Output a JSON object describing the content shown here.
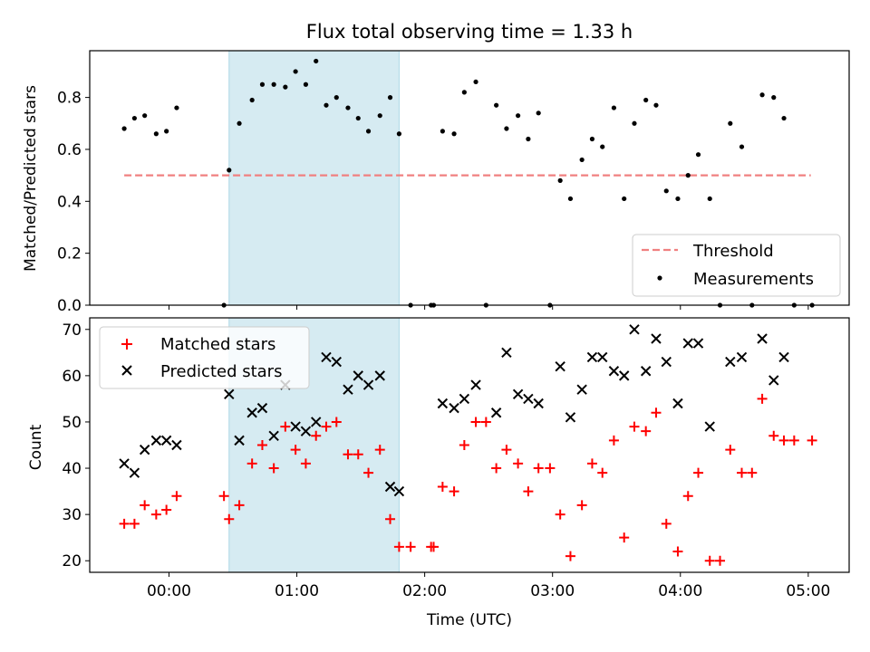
{
  "chart_data": [
    {
      "type": "scatter",
      "title": "Flux total observing time = 1.33 h",
      "ylabel": "Matched/Predicted stars",
      "xlabel": "",
      "x_unit": "hours (UTC)",
      "xlim": [
        -0.62,
        5.32
      ],
      "ylim": [
        0,
        0.98
      ],
      "yticks": [
        0.0,
        0.2,
        0.4,
        0.6,
        0.8
      ],
      "ytick_labels": [
        "0.0",
        "0.2",
        "0.4",
        "0.6",
        "0.8"
      ],
      "highlight_span": [
        0.47,
        1.8
      ],
      "legend": {
        "position": "lower right",
        "entries": [
          "Threshold",
          "Measurements"
        ]
      },
      "threshold": {
        "name": "Threshold",
        "y": 0.5,
        "x": [
          -0.35,
          5.02
        ],
        "color": "#f08080",
        "style": "dashed"
      },
      "series": [
        {
          "name": "Measurements",
          "color": "#000000",
          "marker": "dot",
          "x": [
            -0.35,
            -0.27,
            -0.19,
            -0.1,
            -0.02,
            0.06,
            0.47,
            0.55,
            0.65,
            0.73,
            0.82,
            0.91,
            0.99,
            1.07,
            1.15,
            1.23,
            1.31,
            1.4,
            1.48,
            1.56,
            1.65,
            1.73,
            1.8,
            1.89,
            2.05,
            2.07,
            2.14,
            2.23,
            2.31,
            2.4,
            2.48,
            2.56,
            2.64,
            2.73,
            2.81,
            2.89,
            2.98,
            3.06,
            3.14,
            3.23,
            3.31,
            3.39,
            3.48,
            3.56,
            3.64,
            3.73,
            3.81,
            3.89,
            3.98,
            4.06,
            4.14,
            4.23,
            4.31,
            4.39,
            4.48,
            4.56,
            4.64,
            4.73,
            4.81,
            4.89,
            5.03
          ],
          "y": [
            0.68,
            0.72,
            0.73,
            0.66,
            0.67,
            0.76,
            0.52,
            0.7,
            0.79,
            0.85,
            0.85,
            0.84,
            0.9,
            0.85,
            0.94,
            0.77,
            0.8,
            0.76,
            0.72,
            0.67,
            0.73,
            0.8,
            0.66,
            0.0,
            0.0,
            0.0,
            0.67,
            0.66,
            0.82,
            0.86,
            0.0,
            0.77,
            0.68,
            0.73,
            0.64,
            0.74,
            0.0,
            0.48,
            0.41,
            0.56,
            0.64,
            0.61,
            0.76,
            0.41,
            0.7,
            0.79,
            0.77,
            0.44,
            0.41,
            0.5,
            0.58,
            0.41,
            0.0,
            0.7,
            0.61,
            0.0,
            0.81,
            0.8,
            0.72,
            0.0,
            0.0
          ]
        },
        {
          "name": "Measurements",
          "color": "#000000",
          "marker": "dot",
          "x": [
            0.43
          ],
          "y": [
            0.0
          ]
        }
      ]
    },
    {
      "type": "scatter",
      "title": "",
      "xlabel": "Time (UTC)",
      "ylabel": "Count",
      "x_unit": "hours (UTC)",
      "xlim": [
        -0.62,
        5.32
      ],
      "ylim": [
        17.5,
        72.5
      ],
      "yticks": [
        20,
        30,
        40,
        50,
        60,
        70
      ],
      "ytick_labels": [
        "20",
        "30",
        "40",
        "50",
        "60",
        "70"
      ],
      "xticks": [
        0,
        1,
        2,
        3,
        4,
        5
      ],
      "xtick_labels": [
        "00:00",
        "01:00",
        "02:00",
        "03:00",
        "04:00",
        "05:00"
      ],
      "highlight_span": [
        0.47,
        1.8
      ],
      "legend": {
        "position": "upper left",
        "entries": [
          "Matched stars",
          "Predicted stars"
        ]
      },
      "series": [
        {
          "name": "Matched stars",
          "color": "#ff0000",
          "marker": "plus",
          "x": [
            -0.35,
            -0.27,
            -0.19,
            -0.1,
            -0.02,
            0.06,
            0.43,
            0.47,
            0.55,
            0.65,
            0.73,
            0.82,
            0.91,
            0.99,
            1.07,
            1.15,
            1.23,
            1.31,
            1.4,
            1.48,
            1.56,
            1.65,
            1.73,
            1.8,
            1.89,
            2.05,
            2.07,
            2.14,
            2.23,
            2.31,
            2.4,
            2.48,
            2.56,
            2.64,
            2.73,
            2.81,
            2.89,
            2.98,
            3.06,
            3.14,
            3.23,
            3.31,
            3.39,
            3.48,
            3.56,
            3.64,
            3.73,
            3.81,
            3.89,
            3.98,
            4.06,
            4.14,
            4.23,
            4.31,
            4.39,
            4.48,
            4.56,
            4.64,
            4.73,
            4.81,
            4.89,
            5.03
          ],
          "y": [
            28,
            28,
            32,
            30,
            31,
            34,
            34,
            29,
            32,
            41,
            45,
            40,
            49,
            44,
            41,
            47,
            49,
            50,
            43,
            43,
            39,
            44,
            29,
            23,
            23,
            23,
            23,
            36,
            35,
            45,
            50,
            50,
            40,
            44,
            41,
            35,
            40,
            40,
            30,
            21,
            32,
            41,
            39,
            46,
            25,
            49,
            48,
            52,
            28,
            22,
            34,
            39,
            20,
            20,
            44,
            39,
            39,
            55,
            47,
            46,
            46,
            46
          ]
        },
        {
          "name": "Predicted stars",
          "color": "#000000",
          "marker": "x",
          "x": [
            -0.35,
            -0.27,
            -0.19,
            -0.1,
            -0.02,
            0.06,
            0.47,
            0.55,
            0.65,
            0.73,
            0.82,
            0.91,
            0.99,
            1.07,
            1.15,
            1.23,
            1.31,
            1.4,
            1.48,
            1.56,
            1.65,
            1.73,
            1.8,
            2.14,
            2.23,
            2.31,
            2.4,
            2.56,
            2.64,
            2.73,
            2.81,
            2.89,
            3.06,
            3.14,
            3.23,
            3.31,
            3.39,
            3.48,
            3.56,
            3.64,
            3.73,
            3.81,
            3.89,
            3.98,
            4.06,
            4.14,
            4.23,
            4.39,
            4.48,
            4.64,
            4.73,
            4.81
          ],
          "y": [
            41,
            39,
            44,
            46,
            46,
            45,
            56,
            46,
            52,
            53,
            47,
            58,
            49,
            48,
            50,
            64,
            63,
            57,
            60,
            58,
            60,
            36,
            35,
            54,
            53,
            55,
            58,
            52,
            65,
            56,
            55,
            54,
            62,
            51,
            57,
            64,
            64,
            61,
            60,
            70,
            61,
            68,
            63,
            54,
            67,
            67,
            49,
            63,
            64,
            68,
            59,
            64
          ]
        }
      ]
    }
  ]
}
